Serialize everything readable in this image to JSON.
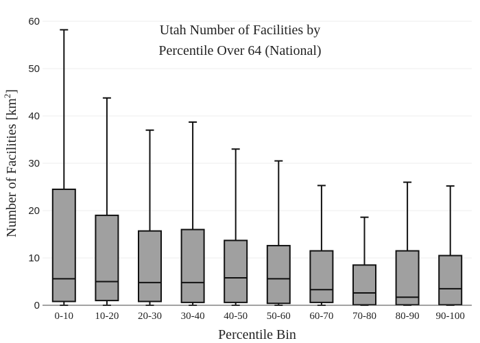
{
  "chart_data": {
    "type": "box",
    "title_line1": "Utah Number of Facilities by",
    "title_line2": "Percentile Over 64 (National)",
    "xlabel": "Percentile Bin",
    "ylabel_main": "Number of Facilities  [km",
    "ylabel_sup": "2",
    "ylabel_close": "]",
    "ylim": [
      0,
      60
    ],
    "yticks": [
      "0",
      "10",
      "20",
      "30",
      "40",
      "50",
      "60"
    ],
    "grid": true,
    "box_color": "#a0a0a0",
    "categories": [
      "0-10",
      "10-20",
      "20-30",
      "30-40",
      "40-50",
      "50-60",
      "60-70",
      "70-80",
      "80-90",
      "90-100"
    ],
    "boxes": [
      {
        "min": 0.0,
        "q1": 0.8,
        "median": 5.6,
        "q3": 24.5,
        "max": 58.2
      },
      {
        "min": 0.0,
        "q1": 1.0,
        "median": 5.0,
        "q3": 19.0,
        "max": 43.8
      },
      {
        "min": 0.0,
        "q1": 0.8,
        "median": 4.8,
        "q3": 15.7,
        "max": 37.0
      },
      {
        "min": 0.0,
        "q1": 0.6,
        "median": 4.8,
        "q3": 16.0,
        "max": 38.7
      },
      {
        "min": 0.0,
        "q1": 0.6,
        "median": 5.8,
        "q3": 13.7,
        "max": 33.0
      },
      {
        "min": 0.0,
        "q1": 0.4,
        "median": 5.6,
        "q3": 12.6,
        "max": 30.5
      },
      {
        "min": 0.0,
        "q1": 0.6,
        "median": 3.3,
        "q3": 11.5,
        "max": 25.3
      },
      {
        "min": 0.0,
        "q1": 0.1,
        "median": 2.6,
        "q3": 8.5,
        "max": 18.6
      },
      {
        "min": 0.0,
        "q1": 0.1,
        "median": 1.7,
        "q3": 11.5,
        "max": 26.0
      },
      {
        "min": 0.0,
        "q1": 0.1,
        "median": 3.5,
        "q3": 10.5,
        "max": 25.2
      }
    ]
  }
}
